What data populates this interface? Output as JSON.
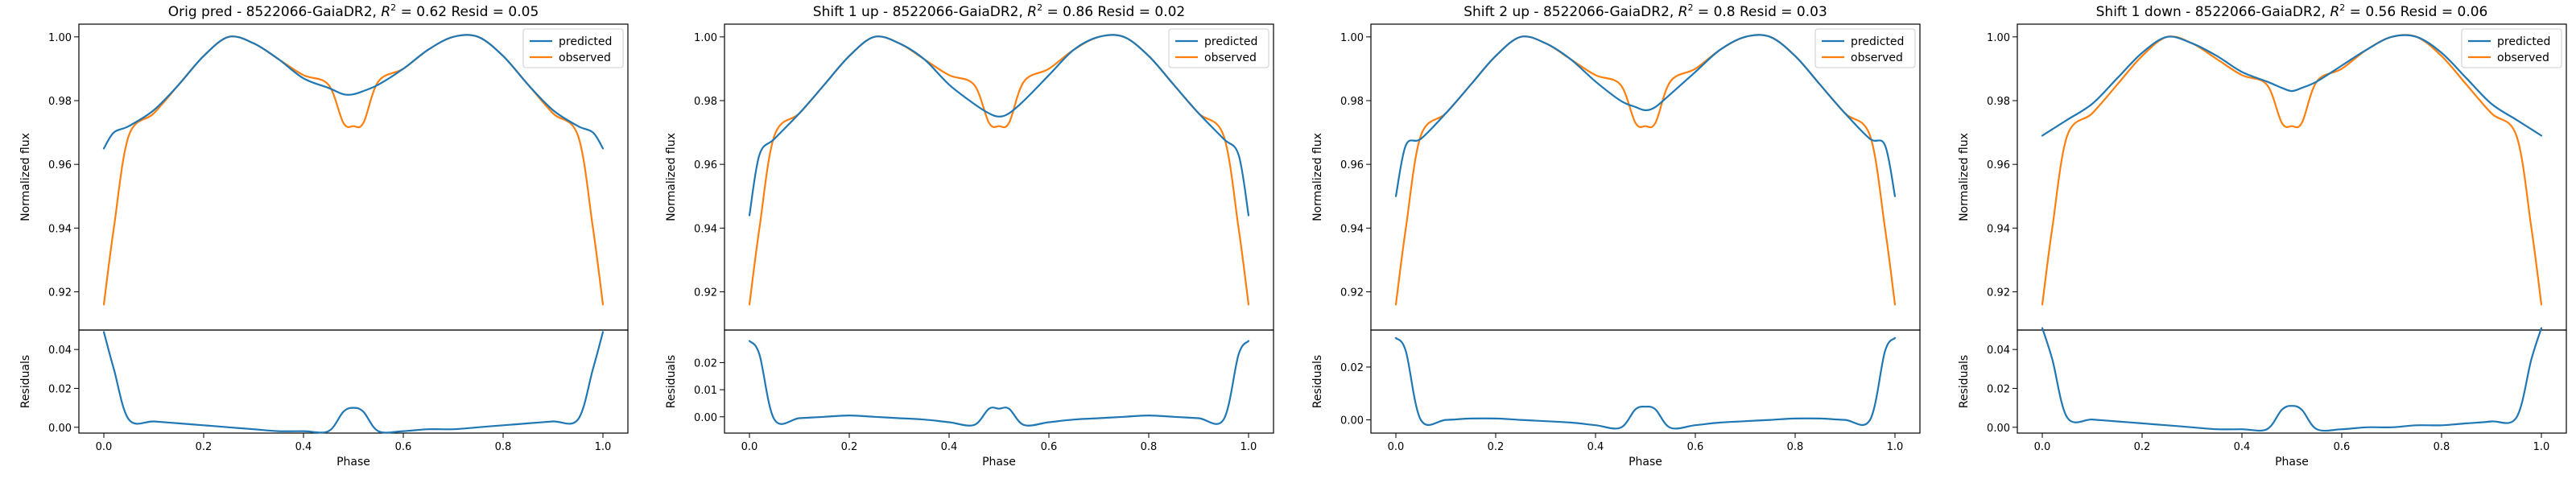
{
  "colors": {
    "predicted": "#1f77b4",
    "observed": "#ff7f0e"
  },
  "chart_data": [
    {
      "type": "line",
      "title": "Orig pred - 8522066-GaiaDR2, $R^2 = 0.62$ Resid = 0.05",
      "title_parts": [
        "Orig pred - 8522066-GaiaDR2, ",
        "R",
        "2",
        " = 0.62 Resid = 0.05"
      ],
      "xlabel": "Phase",
      "ylabel": "Normalized flux",
      "resid_ylabel": "Residuals",
      "legend_position": "top-right",
      "xlim": [
        -0.05,
        1.05
      ],
      "ylim": [
        0.908,
        1.004
      ],
      "resid_ylim": [
        -0.003,
        0.05
      ],
      "xticks": [
        "0.0",
        "0.2",
        "0.4",
        "0.6",
        "0.8",
        "1.0"
      ],
      "yticks": [
        "0.92",
        "0.94",
        "0.96",
        "0.98",
        "1.00"
      ],
      "resid_yticks": [
        "0.00",
        "0.02",
        "0.04"
      ],
      "x": [
        0.0,
        0.02,
        0.05,
        0.1,
        0.15,
        0.2,
        0.25,
        0.3,
        0.35,
        0.4,
        0.45,
        0.48,
        0.5,
        0.52,
        0.55,
        0.6,
        0.65,
        0.7,
        0.75,
        0.8,
        0.85,
        0.9,
        0.95,
        0.98,
        1.0
      ],
      "series": [
        {
          "name": "predicted",
          "values": [
            0.965,
            0.97,
            0.972,
            0.977,
            0.985,
            0.994,
            1.0,
            0.998,
            0.993,
            0.987,
            0.984,
            0.982,
            0.982,
            0.983,
            0.985,
            0.99,
            0.996,
            1.0,
            1.0,
            0.994,
            0.985,
            0.977,
            0.972,
            0.97,
            0.965
          ]
        },
        {
          "name": "observed",
          "values": [
            0.916,
            0.94,
            0.969,
            0.976,
            0.985,
            0.994,
            1.0,
            0.998,
            0.993,
            0.988,
            0.985,
            0.973,
            0.972,
            0.973,
            0.986,
            0.99,
            0.996,
            1.0,
            1.0,
            0.994,
            0.985,
            0.976,
            0.969,
            0.94,
            0.916
          ]
        }
      ],
      "residuals": [
        0.049,
        0.03,
        0.004,
        0.003,
        0.002,
        0.001,
        0.0,
        -0.001,
        -0.002,
        -0.002,
        -0.002,
        0.008,
        0.01,
        0.008,
        -0.002,
        -0.002,
        -0.001,
        -0.001,
        0.0,
        0.001,
        0.002,
        0.003,
        0.004,
        0.03,
        0.049
      ]
    },
    {
      "type": "line",
      "title": "Shift 1 up - 8522066-GaiaDR2, $R^2 = 0.86$ Resid = 0.02",
      "title_parts": [
        "Shift 1 up - 8522066-GaiaDR2, ",
        "R",
        "2",
        " = 0.86 Resid = 0.02"
      ],
      "xlabel": "Phase",
      "ylabel": "Normalized flux",
      "resid_ylabel": "Residuals",
      "legend_position": "top-right",
      "xlim": [
        -0.05,
        1.05
      ],
      "ylim": [
        0.908,
        1.004
      ],
      "resid_ylim": [
        -0.006,
        0.032
      ],
      "xticks": [
        "0.0",
        "0.2",
        "0.4",
        "0.6",
        "0.8",
        "1.0"
      ],
      "yticks": [
        "0.92",
        "0.94",
        "0.96",
        "0.98",
        "1.00"
      ],
      "resid_yticks": [
        "0.00",
        "0.01",
        "0.02"
      ],
      "x": [
        0.0,
        0.02,
        0.05,
        0.1,
        0.15,
        0.2,
        0.25,
        0.3,
        0.35,
        0.4,
        0.45,
        0.48,
        0.5,
        0.52,
        0.55,
        0.6,
        0.65,
        0.7,
        0.75,
        0.8,
        0.85,
        0.9,
        0.95,
        0.98,
        1.0
      ],
      "series": [
        {
          "name": "predicted",
          "values": [
            0.944,
            0.963,
            0.968,
            0.976,
            0.985,
            0.994,
            1.0,
            0.998,
            0.993,
            0.985,
            0.979,
            0.976,
            0.975,
            0.976,
            0.98,
            0.988,
            0.996,
            1.0,
            1.0,
            0.994,
            0.985,
            0.976,
            0.968,
            0.963,
            0.944
          ]
        },
        {
          "name": "observed",
          "values": [
            0.916,
            0.94,
            0.969,
            0.976,
            0.985,
            0.994,
            1.0,
            0.998,
            0.993,
            0.988,
            0.985,
            0.973,
            0.972,
            0.973,
            0.986,
            0.99,
            0.996,
            1.0,
            1.0,
            0.994,
            0.985,
            0.976,
            0.969,
            0.94,
            0.916
          ]
        }
      ],
      "residuals": [
        0.028,
        0.023,
        -0.001,
        -0.0005,
        0.0,
        0.0005,
        0.0,
        -0.0005,
        -0.001,
        -0.002,
        -0.003,
        0.003,
        0.003,
        0.003,
        -0.003,
        -0.002,
        -0.001,
        -0.0005,
        0.0,
        0.0005,
        0.0,
        -0.0005,
        -0.001,
        0.023,
        0.028
      ]
    },
    {
      "type": "line",
      "title": "Shift 2 up - 8522066-GaiaDR2, $R^2 = 0.8$ Resid = 0.03",
      "title_parts": [
        "Shift 2 up - 8522066-GaiaDR2, ",
        "R",
        "2",
        " = 0.8 Resid = 0.03"
      ],
      "xlabel": "Phase",
      "ylabel": "Normalized flux",
      "resid_ylabel": "Residuals",
      "legend_position": "top-right",
      "xlim": [
        -0.05,
        1.05
      ],
      "ylim": [
        0.908,
        1.004
      ],
      "resid_ylim": [
        -0.005,
        0.034
      ],
      "xticks": [
        "0.0",
        "0.2",
        "0.4",
        "0.6",
        "0.8",
        "1.0"
      ],
      "yticks": [
        "0.92",
        "0.94",
        "0.96",
        "0.98",
        "1.00"
      ],
      "resid_yticks": [
        "0.00",
        "0.02"
      ],
      "x": [
        0.0,
        0.02,
        0.05,
        0.1,
        0.15,
        0.2,
        0.25,
        0.3,
        0.35,
        0.4,
        0.45,
        0.48,
        0.5,
        0.52,
        0.55,
        0.6,
        0.65,
        0.7,
        0.75,
        0.8,
        0.85,
        0.9,
        0.95,
        0.98,
        1.0
      ],
      "series": [
        {
          "name": "predicted",
          "values": [
            0.95,
            0.966,
            0.968,
            0.976,
            0.985,
            0.994,
            1.0,
            0.998,
            0.993,
            0.986,
            0.98,
            0.978,
            0.977,
            0.978,
            0.982,
            0.989,
            0.996,
            1.0,
            1.0,
            0.994,
            0.985,
            0.976,
            0.968,
            0.966,
            0.95
          ]
        },
        {
          "name": "observed",
          "values": [
            0.916,
            0.94,
            0.969,
            0.976,
            0.985,
            0.994,
            1.0,
            0.998,
            0.993,
            0.988,
            0.985,
            0.973,
            0.972,
            0.973,
            0.986,
            0.99,
            0.996,
            1.0,
            1.0,
            0.994,
            0.985,
            0.976,
            0.969,
            0.94,
            0.916
          ]
        }
      ],
      "residuals": [
        0.031,
        0.026,
        0.0,
        0.0,
        0.0005,
        0.0005,
        0.0,
        -0.0005,
        -0.001,
        -0.002,
        -0.003,
        0.004,
        0.005,
        0.004,
        -0.003,
        -0.002,
        -0.001,
        -0.0005,
        0.0,
        0.0005,
        0.0005,
        0.0,
        0.0,
        0.026,
        0.031
      ]
    },
    {
      "type": "line",
      "title": "Shift 1 down - 8522066-GaiaDR2, $R^2 = 0.56$ Resid = 0.06",
      "title_parts": [
        "Shift 1 down - 8522066-GaiaDR2, ",
        "R",
        "2",
        " = 0.56 Resid = 0.06"
      ],
      "xlabel": "Phase",
      "ylabel": "Normalized flux",
      "resid_ylabel": "Residuals",
      "legend_position": "top-right",
      "xlim": [
        -0.05,
        1.05
      ],
      "ylim": [
        0.908,
        1.004
      ],
      "resid_ylim": [
        -0.003,
        0.05
      ],
      "xticks": [
        "0.0",
        "0.2",
        "0.4",
        "0.6",
        "0.8",
        "1.0"
      ],
      "yticks": [
        "0.92",
        "0.94",
        "0.96",
        "0.98",
        "1.00"
      ],
      "resid_yticks": [
        "0.00",
        "0.02",
        "0.04"
      ],
      "x": [
        0.0,
        0.02,
        0.05,
        0.1,
        0.15,
        0.2,
        0.25,
        0.3,
        0.35,
        0.4,
        0.45,
        0.48,
        0.5,
        0.52,
        0.55,
        0.6,
        0.65,
        0.7,
        0.75,
        0.8,
        0.85,
        0.9,
        0.95,
        0.98,
        1.0
      ],
      "series": [
        {
          "name": "predicted",
          "values": [
            0.969,
            0.971,
            0.974,
            0.979,
            0.987,
            0.995,
            1.0,
            0.998,
            0.994,
            0.989,
            0.986,
            0.984,
            0.983,
            0.984,
            0.986,
            0.991,
            0.996,
            1.0,
            1.0,
            0.995,
            0.987,
            0.979,
            0.974,
            0.971,
            0.969
          ]
        },
        {
          "name": "observed",
          "values": [
            0.916,
            0.94,
            0.969,
            0.976,
            0.985,
            0.994,
            1.0,
            0.998,
            0.993,
            0.988,
            0.985,
            0.973,
            0.972,
            0.973,
            0.986,
            0.99,
            0.996,
            1.0,
            1.0,
            0.994,
            0.985,
            0.976,
            0.969,
            0.94,
            0.916
          ]
        }
      ],
      "residuals": [
        0.051,
        0.035,
        0.005,
        0.004,
        0.003,
        0.002,
        0.001,
        0.0,
        -0.001,
        -0.001,
        -0.001,
        0.009,
        0.011,
        0.009,
        -0.001,
        -0.001,
        0.0,
        0.0,
        0.001,
        0.001,
        0.002,
        0.003,
        0.005,
        0.035,
        0.051
      ]
    }
  ]
}
